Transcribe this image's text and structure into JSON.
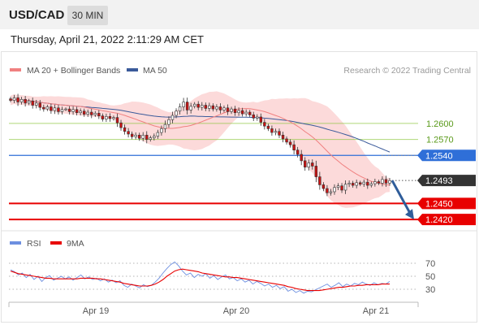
{
  "header": {
    "symbol": "USD/CAD",
    "timeframe": "30 MIN"
  },
  "timestamp": "Thursday, April 21, 2022 2:11:29 AM CET",
  "legend": {
    "ma20": "MA 20 + Bollinger Bands",
    "ma50": "MA 50",
    "research": "Research © 2022 Trading Central"
  },
  "colors": {
    "ma20": "#f08080",
    "ma50": "#3a5a9a",
    "bands": "#fbd3d3",
    "resistance": "#8dc63f",
    "pivot": "#2f6fd8",
    "support": "#e80000",
    "candle_up": "#ffffff",
    "candle_down": "#cc1111",
    "current": "#333333",
    "arrow": "#2f5d9a",
    "rsi": "#6d8fe0",
    "rsi_ma": "#e80000"
  },
  "rsi_legend": {
    "rsi": "RSI",
    "ma": "9MA"
  },
  "chart_data": {
    "type": "candlestick",
    "price_range": [
      1.2405,
      1.2685
    ],
    "levels": [
      {
        "value": 1.26,
        "label": "1.2600",
        "kind": "resistance"
      },
      {
        "value": 1.257,
        "label": "1.2570",
        "kind": "resistance"
      },
      {
        "value": 1.254,
        "label": "1.2540",
        "kind": "pivot"
      },
      {
        "value": 1.2493,
        "label": "1.2493",
        "kind": "current"
      },
      {
        "value": 1.245,
        "label": "1.2450",
        "kind": "support"
      },
      {
        "value": 1.242,
        "label": "1.2420",
        "kind": "support"
      }
    ],
    "closes": [
      1.2643,
      1.2648,
      1.264,
      1.2645,
      1.2638,
      1.2642,
      1.2634,
      1.2638,
      1.263,
      1.2627,
      1.2631,
      1.2624,
      1.2629,
      1.2622,
      1.2626,
      1.2627,
      1.2622,
      1.2626,
      1.262,
      1.2623,
      1.2617,
      1.2621,
      1.2616,
      1.2619,
      1.2614,
      1.2608,
      1.2613,
      1.2609,
      1.2611,
      1.2601,
      1.2592,
      1.2585,
      1.258,
      1.2575,
      1.2578,
      1.2572,
      1.2578,
      1.257,
      1.2573,
      1.2576,
      1.2583,
      1.259,
      1.2598,
      1.2607,
      1.2615,
      1.2623,
      1.2631,
      1.264,
      1.2625,
      1.2632,
      1.2636,
      1.263,
      1.2634,
      1.2628,
      1.2633,
      1.2627,
      1.2631,
      1.2625,
      1.2629,
      1.2622,
      1.2627,
      1.262,
      1.2624,
      1.2618,
      1.2621,
      1.2616,
      1.261,
      1.2612,
      1.2602,
      1.2595,
      1.259,
      1.2583,
      1.2585,
      1.2578,
      1.2571,
      1.2565,
      1.256,
      1.255,
      1.2542,
      1.253,
      1.2518,
      1.2526,
      1.252,
      1.25,
      1.2485,
      1.2478,
      1.247,
      1.2472,
      1.248,
      1.2483,
      1.2475,
      1.2486,
      1.2488,
      1.2484,
      1.2489,
      1.2486,
      1.249,
      1.2484,
      1.2487,
      1.2491,
      1.2488,
      1.2495,
      1.2488,
      1.2493
    ],
    "date_labels": [
      "Apr 19",
      "Apr 20",
      "Apr 21"
    ],
    "forecast_arrow": {
      "from": 1.2493,
      "to": 1.242
    },
    "rsi": {
      "ticks": [
        70,
        50,
        30
      ],
      "range": [
        15,
        85
      ],
      "rsi_values": [
        60,
        57,
        52,
        55,
        48,
        53,
        45,
        50,
        42,
        48,
        51,
        44,
        47,
        50,
        46,
        49,
        44,
        48,
        52,
        46,
        49,
        45,
        47,
        43,
        46,
        41,
        44,
        40,
        43,
        36,
        33,
        38,
        35,
        32,
        37,
        34,
        36,
        41,
        47,
        55,
        62,
        68,
        72,
        66,
        58,
        52,
        55,
        48,
        53,
        50,
        54,
        47,
        51,
        45,
        49,
        52,
        46,
        48,
        43,
        46,
        41,
        44,
        38,
        42,
        39,
        35,
        38,
        33,
        36,
        31,
        34,
        27,
        30,
        25,
        28,
        24,
        27,
        26,
        29,
        32,
        35,
        38,
        33,
        36,
        40,
        34,
        38,
        35,
        39,
        37,
        41,
        38,
        36,
        40,
        37,
        39,
        38,
        42
      ],
      "ma_values": [
        58,
        56,
        54,
        53,
        52,
        51,
        50,
        49,
        48,
        47,
        47,
        46,
        46,
        46,
        46,
        46,
        46,
        46,
        47,
        47,
        47,
        47,
        46,
        46,
        45,
        44,
        43,
        42,
        41,
        39,
        38,
        37,
        36,
        35,
        35,
        35,
        36,
        38,
        41,
        45,
        50,
        54,
        58,
        60,
        61,
        60,
        59,
        58,
        57,
        55,
        54,
        53,
        52,
        51,
        50,
        49,
        49,
        48,
        48,
        47,
        46,
        45,
        44,
        43,
        42,
        41,
        40,
        39,
        38,
        37,
        36,
        34,
        33,
        31,
        30,
        29,
        28,
        28,
        28,
        28,
        29,
        30,
        31,
        32,
        33,
        33,
        34,
        35,
        35,
        36,
        36,
        37,
        37,
        37,
        37,
        38,
        38,
        38
      ]
    }
  }
}
